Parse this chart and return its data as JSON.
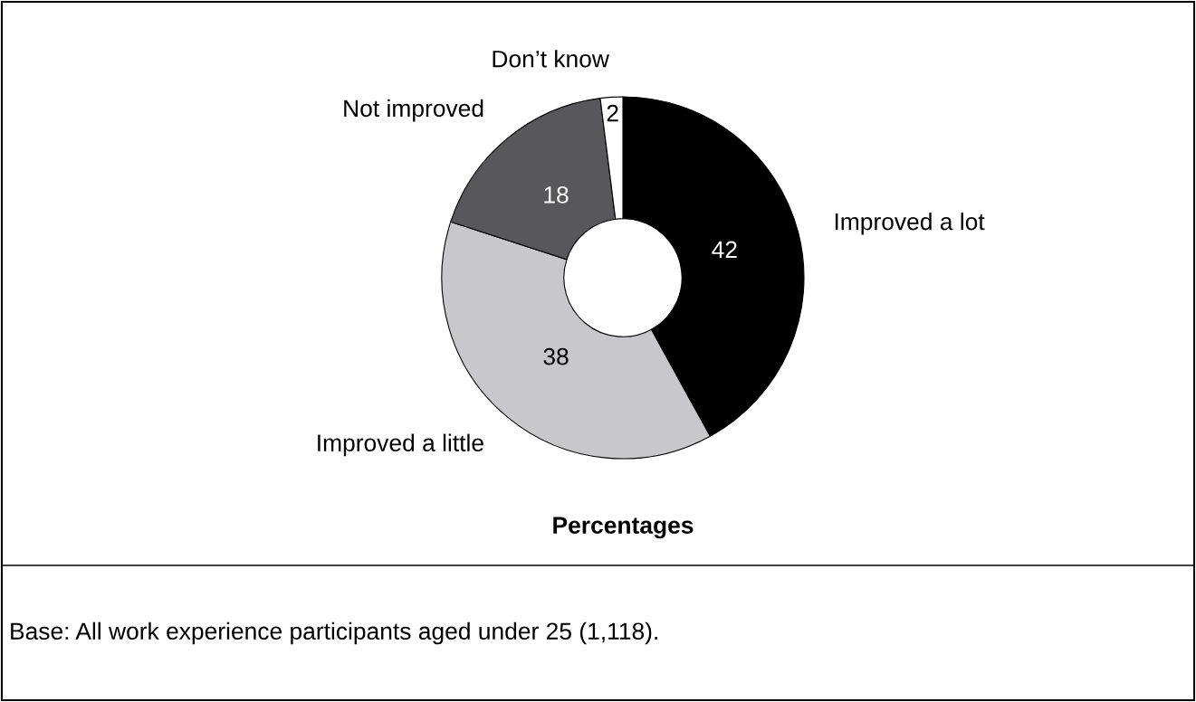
{
  "chart_data": {
    "type": "donut",
    "categories": [
      "Improved a lot",
      "Improved a little",
      "Not improved",
      "Don’t know"
    ],
    "values": [
      42,
      38,
      18,
      2
    ],
    "colors": [
      "#000000",
      "#c8c8ca",
      "#58585a",
      "#ffffff"
    ],
    "data_labels": true,
    "xlabel": "Percentages",
    "annotations": [
      "Base: All work experience participants aged under 25 (1,118)."
    ]
  }
}
